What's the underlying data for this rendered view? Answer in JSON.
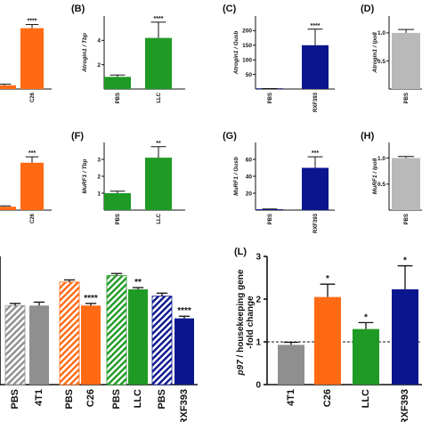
{
  "colors": {
    "orange": "#ff6a13",
    "green": "#1f9a24",
    "navy": "#0b168e",
    "grey": "#8f8f8f",
    "silver": "#b9b9b9",
    "axis": "#111111"
  },
  "chart_data": [
    {
      "id": "A-top",
      "type": "bar",
      "letter": "",
      "ylabel": "",
      "categories": [
        "",
        "C26"
      ],
      "values": [
        0.3,
        5.0
      ],
      "errors": [
        0.1,
        0.3
      ],
      "colors": [
        "#ff6a13",
        "#ff6a13"
      ],
      "significance": [
        "",
        "****"
      ],
      "ylim": [
        0,
        6
      ],
      "yticks": [],
      "yticklabels": []
    },
    {
      "id": "B",
      "type": "bar",
      "letter": "(B)",
      "ylabel": "Atrogin1 / Tbp",
      "categories": [
        "PBS",
        "LLC"
      ],
      "values": [
        1.0,
        4.2
      ],
      "errors": [
        0.15,
        1.3
      ],
      "colors": [
        "#1f9a24",
        "#1f9a24"
      ],
      "significance": [
        "",
        "****"
      ],
      "ylim": [
        0,
        6
      ],
      "yticks": [
        2,
        4
      ],
      "yticklabels": [
        "2",
        "4"
      ]
    },
    {
      "id": "C",
      "type": "bar",
      "letter": "(C)",
      "ylabel": "Atrogin1 / Gusb",
      "categories": [
        "PBS",
        "RXF393"
      ],
      "values": [
        1.0,
        150
      ],
      "errors": [
        0.5,
        55
      ],
      "colors": [
        "#0b168e",
        "#0b168e"
      ],
      "significance": [
        "",
        "****"
      ],
      "ylim": [
        0,
        250
      ],
      "yticks": [
        50,
        100,
        150,
        200
      ],
      "yticklabels": [
        "50",
        "100",
        "150",
        "200"
      ]
    },
    {
      "id": "D",
      "type": "bar",
      "letter": "(D)",
      "ylabel": "Atrogin1 / Ipo8",
      "categories": [
        "PBS"
      ],
      "values": [
        1.0
      ],
      "errors": [
        0.06
      ],
      "colors": [
        "#b9b9b9"
      ],
      "significance": [
        ""
      ],
      "ylim": [
        0,
        1.3
      ],
      "yticks": [
        0.5,
        1.0
      ],
      "yticklabels": [
        "0.5",
        "1.0"
      ]
    },
    {
      "id": "E-top",
      "type": "bar",
      "letter": "",
      "ylabel": "",
      "categories": [
        "",
        "C26"
      ],
      "values": [
        0.2,
        2.8
      ],
      "errors": [
        0.05,
        0.35
      ],
      "colors": [
        "#ff6a13",
        "#ff6a13"
      ],
      "significance": [
        "",
        "***"
      ],
      "ylim": [
        0,
        4
      ],
      "yticks": [],
      "yticklabels": []
    },
    {
      "id": "F",
      "type": "bar",
      "letter": "(F)",
      "ylabel": "MuRF1 / Tbp",
      "categories": [
        "PBS",
        "LLC"
      ],
      "values": [
        1.0,
        3.1
      ],
      "errors": [
        0.12,
        0.65
      ],
      "colors": [
        "#1f9a24",
        "#1f9a24"
      ],
      "significance": [
        "",
        "**"
      ],
      "ylim": [
        0,
        4
      ],
      "yticks": [
        1,
        2,
        3
      ],
      "yticklabels": [
        "1",
        "2",
        "3"
      ]
    },
    {
      "id": "G",
      "type": "bar",
      "letter": "(G)",
      "ylabel": "MuRF1 / Gusb",
      "categories": [
        "PBS",
        "RXF393"
      ],
      "values": [
        1.0,
        50
      ],
      "errors": [
        0.3,
        13
      ],
      "colors": [
        "#0b168e",
        "#0b168e"
      ],
      "significance": [
        "",
        "***"
      ],
      "ylim": [
        0,
        80
      ],
      "yticks": [
        20,
        40,
        60
      ],
      "yticklabels": [
        "20",
        "40",
        "60"
      ]
    },
    {
      "id": "H",
      "type": "bar",
      "letter": "(H)",
      "ylabel": "MuRF1 / Ipo8",
      "categories": [
        "PBS"
      ],
      "values": [
        1.0
      ],
      "errors": [
        0.03
      ],
      "colors": [
        "#b9b9b9"
      ],
      "significance": [
        ""
      ],
      "ylim": [
        0,
        1.3
      ],
      "yticks": [
        0.5,
        1.0
      ],
      "yticklabels": [
        "0.5",
        "1.0"
      ]
    },
    {
      "id": "K",
      "type": "bar",
      "letter": "",
      "ylabel": "",
      "categories": [
        "PBS",
        "4T1",
        "PBS",
        "C26",
        "PBS",
        "LLC",
        "PBS",
        "RXF393"
      ],
      "values": [
        1.85,
        1.85,
        2.4,
        1.85,
        2.55,
        2.23,
        2.07,
        1.55
      ],
      "errors": [
        0.05,
        0.08,
        0.05,
        0.05,
        0.05,
        0.04,
        0.07,
        0.05
      ],
      "colors": [
        "#8f8f8f",
        "#8f8f8f",
        "#ff6a13",
        "#ff6a13",
        "#1f9a24",
        "#1f9a24",
        "#0b168e",
        "#0b168e"
      ],
      "hatched": [
        true,
        false,
        true,
        false,
        true,
        false,
        true,
        false
      ],
      "significance": [
        "",
        "",
        "",
        "****",
        "",
        "**",
        "",
        "****"
      ],
      "ylim": [
        0,
        3
      ],
      "yticks": [
        1,
        2,
        3
      ],
      "yticklabels": [
        "",
        "",
        ""
      ]
    },
    {
      "id": "L",
      "type": "bar",
      "letter": "(L)",
      "ylabel": "p97 / housekeeping gene\n-fold change",
      "categories": [
        "4T1",
        "C26",
        "LLC",
        "RXF393"
      ],
      "values": [
        0.93,
        2.05,
        1.3,
        2.23
      ],
      "errors": [
        0.06,
        0.3,
        0.15,
        0.55
      ],
      "colors": [
        "#8f8f8f",
        "#ff6a13",
        "#1f9a24",
        "#0b168e"
      ],
      "significance": [
        "",
        "*",
        "*",
        "*"
      ],
      "reference_line": 1,
      "ylim": [
        0,
        3
      ],
      "yticks": [
        0,
        1,
        2,
        3
      ],
      "yticklabels": [
        "0",
        "1",
        "2",
        "3"
      ]
    }
  ]
}
